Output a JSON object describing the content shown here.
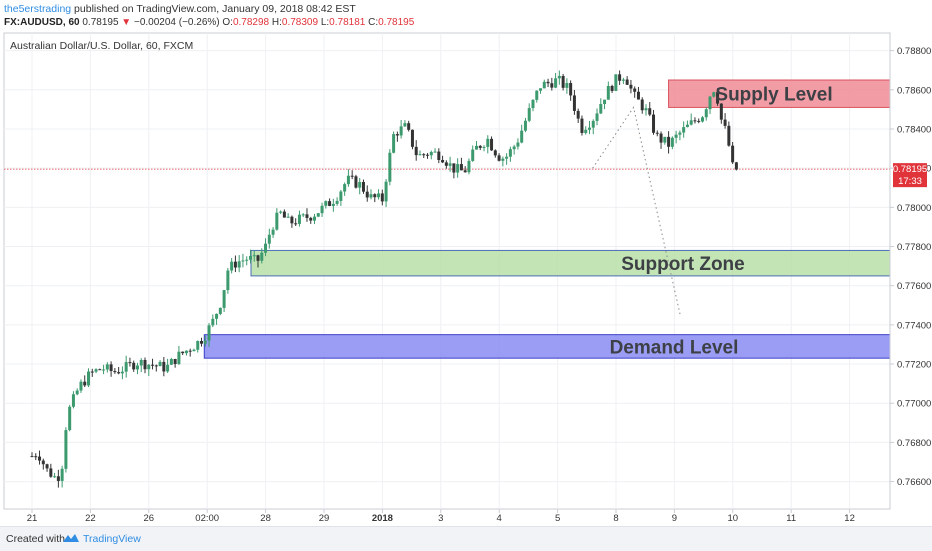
{
  "header": {
    "user": "the5erstrading",
    "published": " published on TradingView.com, January 09, 2018 08:42 EST",
    "symbol": "FX:AUDUSD, 60",
    "last": "0.78195",
    "arrow": "▼",
    "change": "−0.00204 (−0.26%)",
    "o_label": "O:",
    "o_value": "0.78298",
    "h_label": "H:",
    "h_value": "0.78309",
    "l_label": "L:",
    "l_value": "0.78181",
    "c_label": "C:",
    "c_value": "0.78195"
  },
  "footer": {
    "created": "Created with",
    "brand": "TradingView"
  },
  "colors": {
    "up": "#3c9a6e",
    "down": "#333333",
    "supply": "#f08b95",
    "support": "#b9dfa8",
    "demand": "#8a8cf2",
    "price_line": "#e0333a",
    "text_overlay": "#3d4045"
  },
  "chart_data": {
    "type": "candlestick",
    "title": "Australian Dollar/U.S. Dollar, 60, FXCM",
    "y_ticks": [
      "0.78800",
      "0.78600",
      "0.78400",
      "0.78200",
      "0.78000",
      "0.77800",
      "0.77600",
      "0.77400",
      "0.77200",
      "0.77000",
      "0.76800",
      "0.76600"
    ],
    "ylim": [
      0.7646,
      0.7889
    ],
    "x_ticks": [
      "21",
      "22",
      "26",
      "02:00",
      "28",
      "29",
      "2018",
      "3",
      "4",
      "5",
      "8",
      "9",
      "10",
      "11",
      "12"
    ],
    "current_price": "0.78195",
    "countdown": "17:33",
    "zones": [
      {
        "label": "Supply Level",
        "top": 0.7865,
        "bottom": 0.7851
      },
      {
        "label": "Support Zone",
        "top": 0.7778,
        "bottom": 0.7765
      },
      {
        "label": "Demand Level",
        "top": 0.7735,
        "bottom": 0.7723
      }
    ],
    "projection": [
      [
        9.6,
        0.782
      ],
      [
        10.3,
        0.7851
      ],
      [
        11.1,
        0.7745
      ]
    ],
    "path": [
      [
        0.0,
        0.7673
      ],
      [
        0.1,
        0.7675
      ],
      [
        0.25,
        0.7666
      ],
      [
        0.4,
        0.7662
      ],
      [
        0.5,
        0.7664
      ],
      [
        0.6,
        0.7694
      ],
      [
        0.8,
        0.7708
      ],
      [
        1.0,
        0.7715
      ],
      [
        1.2,
        0.7718
      ],
      [
        1.4,
        0.7716
      ],
      [
        1.6,
        0.7718
      ],
      [
        1.8,
        0.7721
      ],
      [
        2.0,
        0.772
      ],
      [
        2.3,
        0.7718
      ],
      [
        2.5,
        0.7724
      ],
      [
        2.8,
        0.773
      ],
      [
        2.95,
        0.7734
      ],
      [
        3.1,
        0.7742
      ],
      [
        3.25,
        0.7753
      ],
      [
        3.35,
        0.7768
      ],
      [
        3.5,
        0.7772
      ],
      [
        3.7,
        0.7774
      ],
      [
        3.85,
        0.7772
      ],
      [
        4.0,
        0.778
      ],
      [
        4.1,
        0.779
      ],
      [
        4.25,
        0.7797
      ],
      [
        4.4,
        0.7792
      ],
      [
        4.6,
        0.7794
      ],
      [
        4.8,
        0.7796
      ],
      [
        5.0,
        0.78
      ],
      [
        5.2,
        0.7805
      ],
      [
        5.4,
        0.7814
      ],
      [
        5.6,
        0.7812
      ],
      [
        5.8,
        0.7805
      ],
      [
        6.0,
        0.7804
      ],
      [
        6.1,
        0.7822
      ],
      [
        6.2,
        0.7838
      ],
      [
        6.4,
        0.7841
      ],
      [
        6.6,
        0.7826
      ],
      [
        6.8,
        0.7828
      ],
      [
        7.0,
        0.7827
      ],
      [
        7.2,
        0.782
      ],
      [
        7.4,
        0.7818
      ],
      [
        7.6,
        0.783
      ],
      [
        7.8,
        0.7835
      ],
      [
        7.9,
        0.783
      ],
      [
        8.0,
        0.7826
      ],
      [
        8.1,
        0.7825
      ],
      [
        8.3,
        0.7833
      ],
      [
        8.5,
        0.7848
      ],
      [
        8.7,
        0.7862
      ],
      [
        9.0,
        0.7865
      ],
      [
        9.2,
        0.786
      ],
      [
        9.4,
        0.784
      ],
      [
        9.6,
        0.7845
      ],
      [
        9.8,
        0.7857
      ],
      [
        10.0,
        0.7865
      ],
      [
        10.15,
        0.7868
      ],
      [
        10.3,
        0.7857
      ],
      [
        10.5,
        0.785
      ],
      [
        10.7,
        0.7836
      ],
      [
        10.9,
        0.7832
      ],
      [
        11.1,
        0.7838
      ],
      [
        11.3,
        0.7843
      ],
      [
        11.5,
        0.7848
      ],
      [
        11.6,
        0.7857
      ],
      [
        11.7,
        0.7862
      ],
      [
        11.8,
        0.7845
      ],
      [
        11.9,
        0.7837
      ],
      [
        12.0,
        0.782
      ],
      [
        12.1,
        0.7819
      ]
    ]
  }
}
